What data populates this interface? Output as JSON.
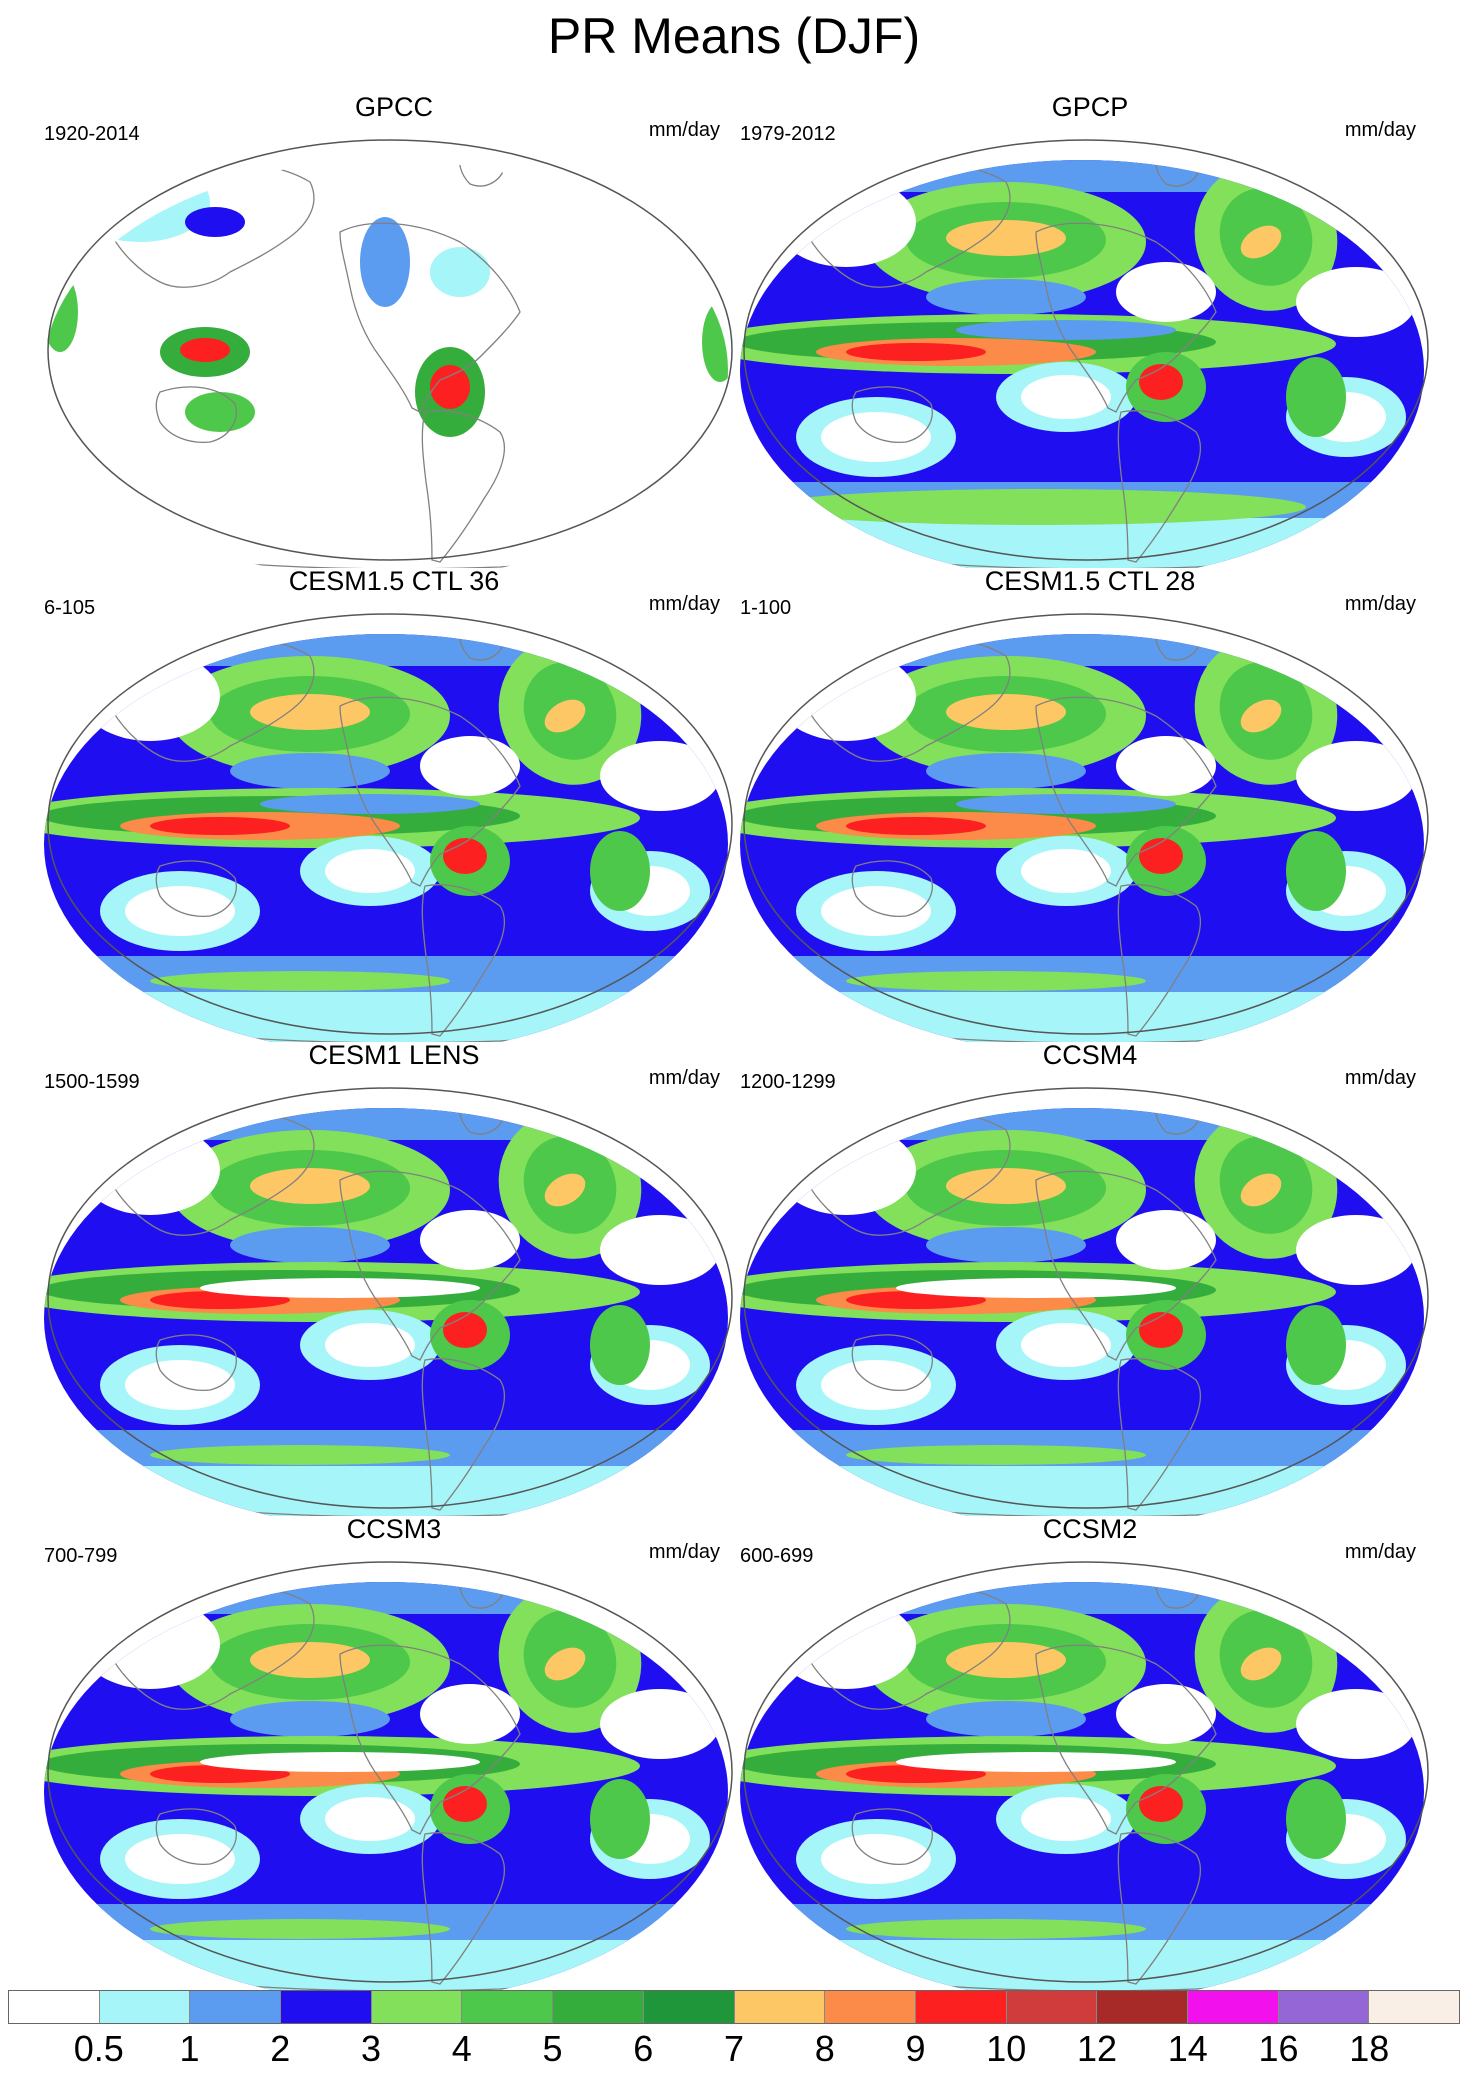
{
  "figure": {
    "title": "PR Means (DJF)"
  },
  "colors": {
    "levels": [
      "#ffffff",
      "#a6f5f8",
      "#5b9cf0",
      "#1f0ff0",
      "#82e05a",
      "#4ec84a",
      "#35ad3d",
      "#1e9639",
      "#fdc766",
      "#fc8a48",
      "#fc2020",
      "#d03c3c",
      "#a82a28",
      "#f210ec",
      "#9567d6",
      "#f9efe6"
    ],
    "ocean_base": "#1f0ff0",
    "coast": "#808080"
  },
  "panels": [
    {
      "id": "gpcc",
      "title": "GPCC",
      "period": "1920-2014",
      "units": "mm/day",
      "ocean": false,
      "style": "obs"
    },
    {
      "id": "gpcp",
      "title": "GPCP",
      "period": "1979-2012",
      "units": "mm/day",
      "ocean": true,
      "style": "gpcp"
    },
    {
      "id": "cesm15-ctl36",
      "title": "CESM1.5 CTL 36",
      "period": "6-105",
      "units": "mm/day",
      "ocean": true,
      "style": "cesm"
    },
    {
      "id": "cesm15-ctl28",
      "title": "CESM1.5 CTL 28",
      "period": "1-100",
      "units": "mm/day",
      "ocean": true,
      "style": "cesm"
    },
    {
      "id": "cesm1-lens",
      "title": "CESM1 LENS",
      "period": "1500-1599",
      "units": "mm/day",
      "ocean": true,
      "style": "lens"
    },
    {
      "id": "ccsm4",
      "title": "CCSM4",
      "period": "1200-1299",
      "units": "mm/day",
      "ocean": true,
      "style": "lens"
    },
    {
      "id": "ccsm3",
      "title": "CCSM3",
      "period": "700-799",
      "units": "mm/day",
      "ocean": true,
      "style": "ccsm3"
    },
    {
      "id": "ccsm2",
      "title": "CCSM2",
      "period": "600-699",
      "units": "mm/day",
      "ocean": true,
      "style": "ccsm3"
    }
  ],
  "legend": {
    "labels": [
      "0.5",
      "1",
      "2",
      "3",
      "4",
      "5",
      "6",
      "7",
      "8",
      "9",
      "10",
      "12",
      "14",
      "16",
      "18"
    ]
  }
}
